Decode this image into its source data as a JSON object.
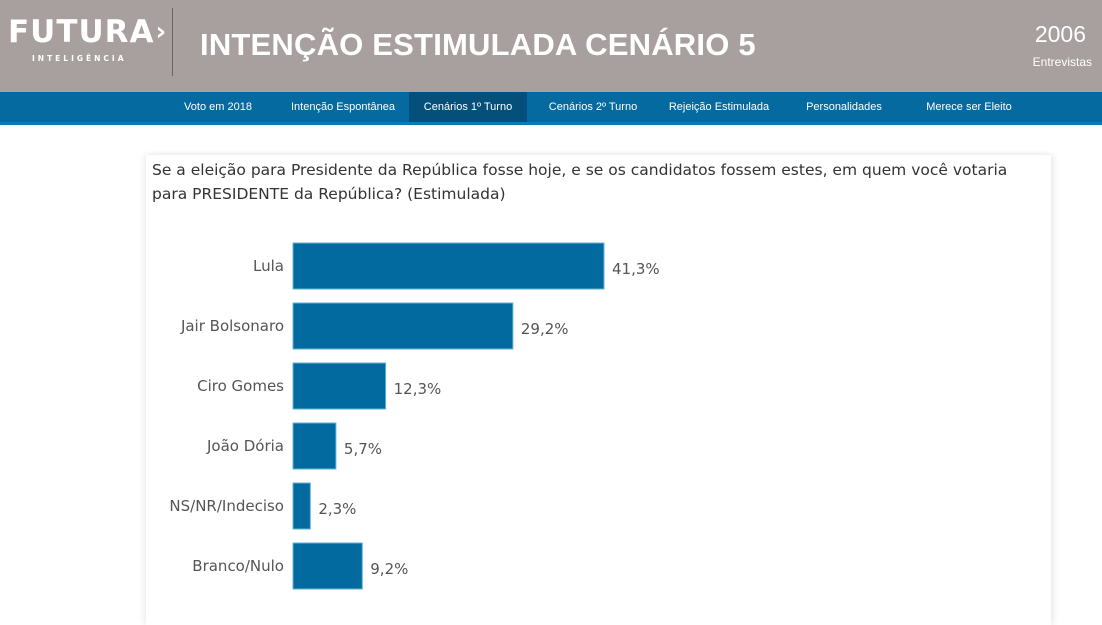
{
  "header": {
    "logo_main": "FUTURA",
    "logo_mark": "›",
    "logo_sub": "INTELIGÊNCIA",
    "title": "INTENÇÃO ESTIMULADA CENÁRIO 5",
    "count_value": "2006",
    "count_label": "Entrevistas"
  },
  "nav": {
    "items": [
      {
        "label": "Voto em 2018",
        "active": false
      },
      {
        "label": "Intenção Espontânea",
        "active": false
      },
      {
        "label": "Cenários 1º Turno",
        "active": true
      },
      {
        "label": "Cenários 2º Turno",
        "active": false
      },
      {
        "label": "Rejeição Estimulada",
        "active": false
      },
      {
        "label": "Personalidades",
        "active": false
      },
      {
        "label": "Merece ser Eleito",
        "active": false
      }
    ]
  },
  "colors": {
    "bar": "#026a9e",
    "bar_border": "#5fb4d8",
    "header_bg": "#a8a09e",
    "nav_bg": "#046a9f",
    "nav_active": "#04507b"
  },
  "chart_data": {
    "type": "bar",
    "orientation": "horizontal",
    "title": "Se a eleição para Presidente da República fosse hoje, e se os candidatos fossem estes, em quem você votaria para PRESIDENTE da República? (Estimulada)",
    "categories": [
      "Lula",
      "Jair Bolsonaro",
      "Ciro Gomes",
      "João Dória",
      "NS/NR/Indeciso",
      "Branco/Nulo"
    ],
    "values": [
      41.3,
      29.2,
      12.3,
      5.7,
      2.3,
      9.2
    ],
    "value_labels": [
      "41,3%",
      "29,2%",
      "12,3%",
      "5,7%",
      "2,3%",
      "9,2%"
    ],
    "unit": "%",
    "xlabel": "",
    "ylabel": "",
    "grid": false,
    "legend": "none"
  }
}
